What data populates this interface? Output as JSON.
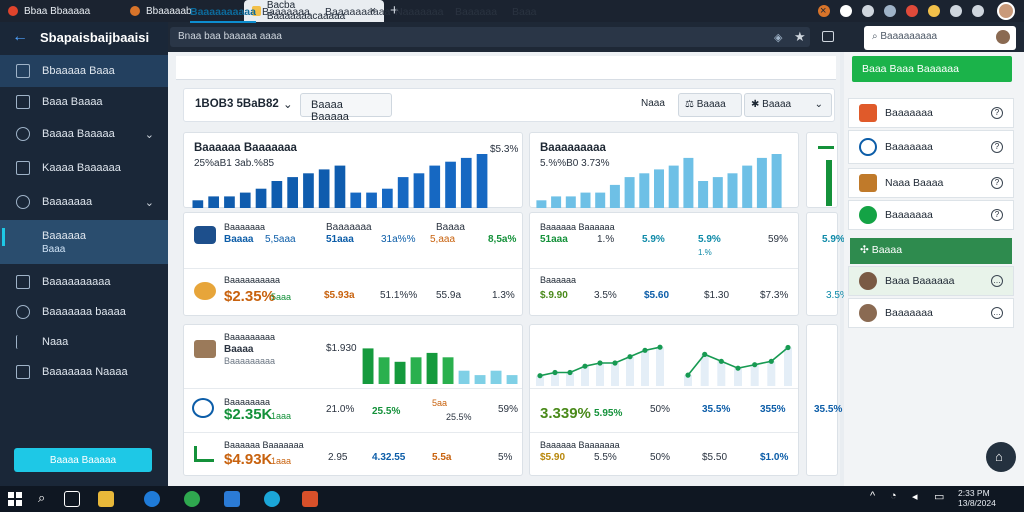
{
  "browser": {
    "tabs": [
      {
        "title": "Bbaa Bbaaaaa",
        "color": "#e0442c"
      },
      {
        "title": "Bbaaaaab",
        "color": "#d8742a"
      },
      {
        "title": "Bacba Baaaaaaacaaaaa",
        "color": "#f2c04a"
      }
    ],
    "new_tab": "+",
    "address": "Bnaa baa baaaaa aaaa",
    "close": "×"
  },
  "sidebar": {
    "back": "←",
    "title": "Sbapaisbaijbaaisi",
    "items": [
      {
        "label": "Bbaaaaa Baaa",
        "icon": "user-icon"
      },
      {
        "label": "Baaa Baaaa",
        "icon": "calendar-icon"
      },
      {
        "label": "Baaaa Baaaaa",
        "icon": "gear-icon",
        "chevron": "⌄"
      },
      {
        "label": "Kaaaa Baaaaaa",
        "icon": "list-icon"
      },
      {
        "label": "Baaaaaaa",
        "icon": "globe-icon",
        "chevron": "⌄"
      },
      {
        "label": "Baaaaaa",
        "icon": "file-icon",
        "sub": "Baaa"
      },
      {
        "label": "Baaaaaaaaaa",
        "icon": "folder-icon"
      },
      {
        "label": "Baaaaaaa baaaa",
        "icon": "share-icon"
      },
      {
        "label": "Naaa",
        "icon": "flag-icon"
      },
      {
        "label": "Baaaaaaa Naaaa",
        "icon": "table-icon"
      }
    ],
    "button": "Baaaa Baaaaa"
  },
  "subtabs": [
    "Baaaaaaaaaa",
    "Baaaaaaa",
    "Baaaaaaaaaa",
    "Naaaaaaa",
    "Baaaaaa",
    "Baaa"
  ],
  "filter": {
    "select": "1BOB3 5BaB82",
    "button": "Baaaa Baaaaa",
    "more": "Naaa",
    "b2": "Baaaa",
    "b3": "Baaaa"
  },
  "cards": {
    "c1": {
      "title": "Baaaaaa Baaaaaaa",
      "sub": "25%aB1 3ab.%85",
      "val": "$5.3%"
    },
    "c2": {
      "title": "Baaaaaaaaa",
      "sub": "5.%%B0 3.73%"
    },
    "r1": {
      "name": "Baaaaaaa",
      "sub": "Baaaa",
      "v1": "5,5aaa",
      "v2": "51aaa",
      "v3": "31a%%",
      "v4": "5,aaa",
      "v5": "12,5a",
      "v6": "8,5a%"
    },
    "r2": {
      "name": "Baaaaaaaaaa",
      "v1": "$2.35%",
      "v2": "5aaa",
      "v3": "$5.93a",
      "v4": "51.1%%",
      "v5": "55.9a",
      "v6": "1.3%"
    },
    "r3": {
      "name": "Baaaaaa Baaaaaa",
      "v1": "51aaa",
      "v2": "1.%",
      "v3": "5.9%",
      "v4": "59%"
    },
    "r4": {
      "name": "Baaaaaa",
      "v1": "$.9.90",
      "v2": "3.5%",
      "v3": "$5.60",
      "v4": "$1.30",
      "v5": "$7.3%"
    },
    "r5": {
      "name": "Baaaaaaaaa",
      "sub": "Baaaa",
      "v1": "$1.930",
      "v2": "5%"
    },
    "r6": {
      "name": "Baaaaaaaa",
      "v1": "$2.35K",
      "v2": "1aaa",
      "v3": "21.0%",
      "v4": "25.5%",
      "v5": "5aa",
      "v6": "59%",
      "v7": "3.339%",
      "v8": "5.95%",
      "v9": "50%",
      "v10": "35.5%",
      "v11": "355%"
    },
    "r7": {
      "name": "Baaaaaa Baaaaaaa",
      "v1": "$4.93K",
      "v2": "1aaa",
      "v3": "2.95",
      "v4": "4.32.55",
      "v5": "5.5a",
      "v6": "5%",
      "v7": "$5.90",
      "v8": "5.5%",
      "v9": "50%",
      "v10": "$5.50",
      "v11": "$1.0%"
    }
  },
  "chart_data": [
    {
      "type": "bar",
      "values": [
        2,
        3,
        3,
        4,
        5,
        7,
        8,
        9,
        10,
        11,
        4,
        4,
        5,
        8,
        9,
        11,
        12,
        13,
        14
      ]
    },
    {
      "type": "bar",
      "values": [
        2,
        3,
        3,
        4,
        4,
        6,
        8,
        9,
        10,
        11,
        13,
        7,
        8,
        9,
        11,
        13,
        14
      ]
    },
    {
      "type": "bar",
      "values": [
        8,
        6,
        5,
        6,
        7,
        6,
        3,
        2,
        3,
        2
      ]
    },
    {
      "type": "line",
      "values": [
        2,
        3,
        3,
        5,
        6,
        6,
        8,
        10,
        11
      ]
    },
    {
      "type": "line",
      "values": [
        2,
        8,
        6,
        4,
        5,
        6,
        10
      ]
    }
  ],
  "right": {
    "search": "Baaaaaaaaa",
    "green": "Baaa Baaa Baaaaaa",
    "items": [
      "Baaaaaaa",
      "Baaaaaaa",
      "Naaa Baaaa",
      "Baaaaaaa"
    ],
    "section": "Baaaa",
    "people": [
      "Baaa Baaaaaa",
      "Baaaaaaa"
    ],
    "q": "?"
  },
  "clock": {
    "time": "2:33 PM",
    "date": "13/8/2024"
  }
}
